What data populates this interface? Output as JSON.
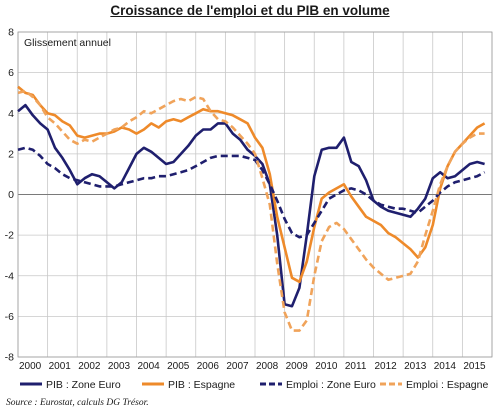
{
  "title": "Croissance de l'emploi et du PIB en volume",
  "source": "Source : Eurostat, calculs DG Trésor.",
  "colors": {
    "navy": "#1f1f6e",
    "orange": "#ee8a2a",
    "orange_dashed": "#f0a35a",
    "grid": "#c8c8c8"
  },
  "chart_data": {
    "type": "line",
    "title": "Croissance de l'emploi et du PIB en volume",
    "ylabel": "Glissement annuel",
    "xlabel": "",
    "xlim": [
      2000,
      2016
    ],
    "ylim": [
      -8,
      8
    ],
    "yticks": [
      8,
      6,
      4,
      2,
      0,
      -2,
      -4,
      -6,
      -8
    ],
    "xticks": [
      "2000",
      "2001",
      "2002",
      "2003",
      "2004",
      "2005",
      "2006",
      "2007",
      "2008",
      "2009",
      "2010",
      "2011",
      "2012",
      "2013",
      "2014",
      "2015"
    ],
    "grid": true,
    "legend_position": "bottom",
    "x": [
      2000,
      2000.25,
      2000.5,
      2000.75,
      2001,
      2001.25,
      2001.5,
      2001.75,
      2002,
      2002.25,
      2002.5,
      2002.75,
      2003,
      2003.25,
      2003.5,
      2003.75,
      2004,
      2004.25,
      2004.5,
      2004.75,
      2005,
      2005.25,
      2005.5,
      2005.75,
      2006,
      2006.25,
      2006.5,
      2006.75,
      2007,
      2007.25,
      2007.5,
      2007.75,
      2008,
      2008.25,
      2008.5,
      2008.75,
      2009,
      2009.25,
      2009.5,
      2009.75,
      2010,
      2010.25,
      2010.5,
      2010.75,
      2011,
      2011.25,
      2011.5,
      2011.75,
      2012,
      2012.25,
      2012.5,
      2012.75,
      2013,
      2013.25,
      2013.5,
      2013.75,
      2014,
      2014.25,
      2014.5,
      2014.75,
      2015,
      2015.25,
      2015.5,
      2015.75
    ],
    "series": [
      {
        "name": "PIB : Zone Euro",
        "color": "#1f1f6e",
        "style": "solid",
        "values": [
          4.1,
          4.4,
          3.9,
          3.5,
          3.2,
          2.3,
          1.8,
          1.2,
          0.5,
          0.8,
          1.0,
          0.9,
          0.6,
          0.3,
          0.6,
          1.3,
          2.0,
          2.3,
          2.1,
          1.8,
          1.5,
          1.6,
          2.0,
          2.4,
          2.9,
          3.2,
          3.2,
          3.5,
          3.5,
          3.0,
          2.7,
          2.2,
          1.9,
          1.5,
          0.5,
          -2.0,
          -5.4,
          -5.5,
          -4.6,
          -2.0,
          0.9,
          2.2,
          2.3,
          2.3,
          2.8,
          1.6,
          1.4,
          0.7,
          -0.3,
          -0.6,
          -0.8,
          -0.9,
          -1.0,
          -1.1,
          -0.7,
          -0.2,
          0.8,
          1.1,
          0.8,
          0.9,
          1.2,
          1.5,
          1.6,
          1.5
        ]
      },
      {
        "name": "PIB : Espagne",
        "color": "#ee8a2a",
        "style": "solid",
        "values": [
          5.3,
          5.0,
          4.9,
          4.4,
          4.0,
          3.9,
          3.6,
          3.4,
          2.9,
          2.8,
          2.9,
          3.0,
          3.0,
          3.1,
          3.3,
          3.2,
          3.0,
          3.2,
          3.5,
          3.3,
          3.6,
          3.7,
          3.6,
          3.8,
          4.0,
          4.2,
          4.1,
          4.1,
          4.0,
          3.9,
          3.7,
          3.5,
          2.8,
          2.3,
          1.0,
          -1.1,
          -2.6,
          -4.1,
          -4.3,
          -3.3,
          -1.6,
          -0.2,
          0.1,
          0.3,
          0.5,
          -0.1,
          -0.6,
          -1.1,
          -1.3,
          -1.5,
          -1.9,
          -2.1,
          -2.4,
          -2.7,
          -3.1,
          -2.6,
          -1.5,
          0.3,
          1.4,
          2.1,
          2.5,
          2.9,
          3.3,
          3.5
        ]
      },
      {
        "name": "Emploi : Zone Euro",
        "color": "#1f1f6e",
        "style": "dashed",
        "values": [
          2.2,
          2.3,
          2.2,
          1.9,
          1.5,
          1.3,
          1.0,
          0.8,
          0.7,
          0.6,
          0.5,
          0.4,
          0.4,
          0.4,
          0.5,
          0.6,
          0.7,
          0.8,
          0.8,
          0.9,
          0.9,
          1.0,
          1.1,
          1.2,
          1.4,
          1.6,
          1.8,
          1.9,
          1.9,
          1.9,
          1.9,
          1.8,
          1.7,
          1.2,
          0.5,
          -0.3,
          -1.2,
          -1.9,
          -2.1,
          -2.0,
          -1.4,
          -0.8,
          -0.2,
          0.0,
          0.2,
          0.3,
          0.2,
          0.0,
          -0.3,
          -0.5,
          -0.6,
          -0.7,
          -0.7,
          -0.8,
          -0.9,
          -0.6,
          -0.3,
          0.1,
          0.4,
          0.6,
          0.7,
          0.8,
          0.9,
          1.1
        ]
      },
      {
        "name": "Emploi : Espagne",
        "color": "#f0a35a",
        "style": "dashed",
        "values": [
          5.0,
          5.1,
          4.8,
          4.4,
          3.8,
          3.5,
          3.1,
          2.7,
          2.5,
          2.7,
          2.6,
          2.8,
          3.0,
          3.2,
          3.3,
          3.6,
          3.8,
          4.1,
          4.0,
          4.2,
          4.4,
          4.6,
          4.7,
          4.6,
          4.8,
          4.7,
          4.1,
          3.7,
          3.6,
          3.3,
          2.9,
          2.5,
          2.0,
          0.8,
          -0.5,
          -3.4,
          -5.8,
          -6.7,
          -6.7,
          -6.2,
          -4.0,
          -2.3,
          -1.6,
          -1.4,
          -1.7,
          -2.2,
          -2.7,
          -3.2,
          -3.6,
          -3.9,
          -4.2,
          -4.1,
          -4.0,
          -3.9,
          -3.3,
          -2.0,
          -0.8,
          0.5,
          1.4,
          2.1,
          2.5,
          2.8,
          3.0,
          3.0
        ]
      }
    ]
  }
}
